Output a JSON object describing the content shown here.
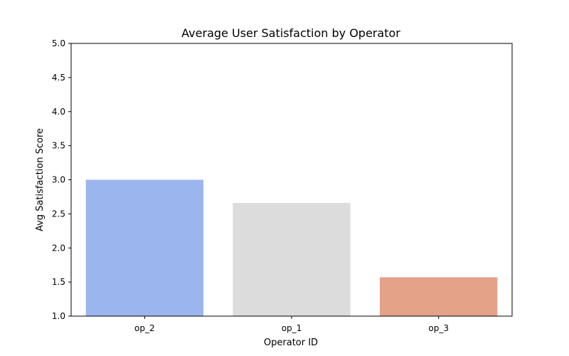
{
  "chart_data": {
    "type": "bar",
    "title": "Average User Satisfaction by Operator",
    "xlabel": "Operator ID",
    "ylabel": "Avg Satisfaction Score",
    "categories": [
      "op_2",
      "op_1",
      "op_3"
    ],
    "values": [
      3.0,
      2.66,
      1.57
    ],
    "colors": [
      "#9bb5ef",
      "#dcdcdc",
      "#e4a288"
    ],
    "ylim": [
      1.0,
      5.0
    ],
    "yticks": [
      "1.0",
      "1.5",
      "2.0",
      "2.5",
      "3.0",
      "3.5",
      "4.0",
      "4.5",
      "5.0"
    ],
    "grid": false,
    "legend": "none"
  }
}
